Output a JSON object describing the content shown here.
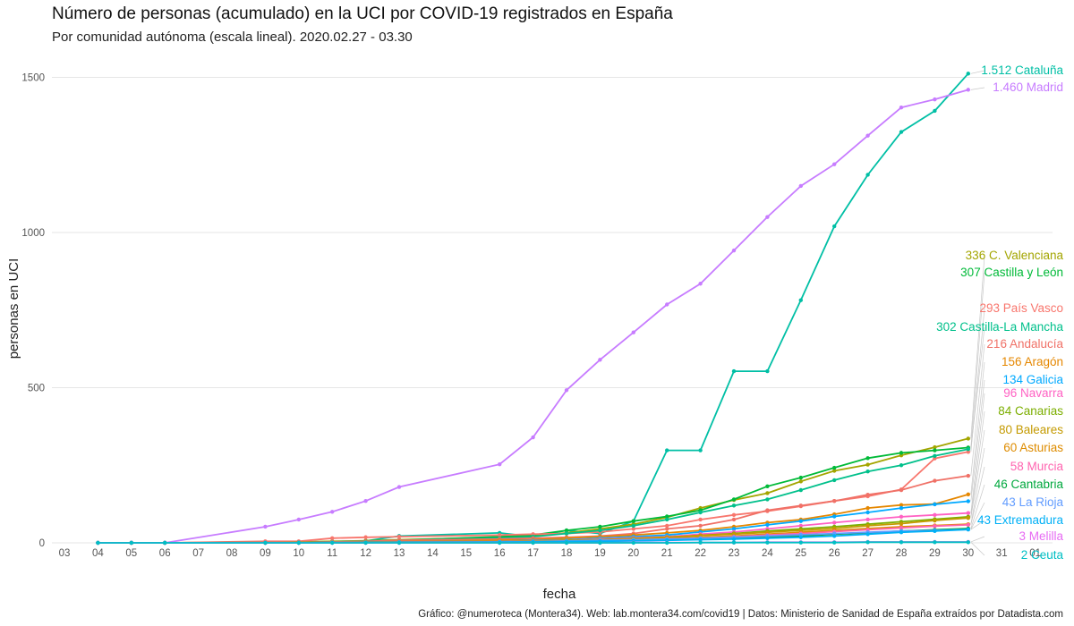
{
  "chart_data": {
    "type": "line",
    "title": "Número de personas (acumulado) en la UCI por COVID-19 registrados en España",
    "subtitle": "Por comunidad autónoma (escala lineal). 2020.02.27 - 03.30",
    "xlabel": "fecha",
    "ylabel": "personas en UCI",
    "caption": "Gráfico: @numeroteca (Montera34). Web: lab.montera34.com/covid19 | Datos: Ministerio de Sanidad de España extraídos por Datadista.com",
    "x_ticks": [
      "03",
      "04",
      "05",
      "06",
      "07",
      "08",
      "09",
      "10",
      "11",
      "12",
      "13",
      "14",
      "15",
      "16",
      "17",
      "18",
      "19",
      "20",
      "21",
      "22",
      "23",
      "24",
      "25",
      "26",
      "27",
      "28",
      "29",
      "30",
      "31",
      "01"
    ],
    "y_ticks": [
      0,
      500,
      1000,
      1500
    ],
    "ylim": [
      -40,
      1600
    ],
    "grid": true,
    "series": [
      {
        "name": "Cataluña",
        "label": "1.512 Cataluña",
        "color": "#00BFA5",
        "x": [
          4,
          5,
          6,
          9,
          10,
          11,
          12,
          13,
          16,
          17,
          18,
          19,
          20,
          21,
          22,
          23,
          24,
          25,
          26,
          27,
          28,
          29,
          30
        ],
        "values": [
          0,
          0,
          0,
          2,
          3,
          4,
          6,
          22,
          32,
          20,
          40,
          30,
          70,
          298,
          298,
          553,
          553,
          782,
          1020,
          1186,
          1324,
          1392,
          1512
        ]
      },
      {
        "name": "Madrid",
        "label": "1.460 Madrid",
        "color": "#C77CFF",
        "x": [
          4,
          5,
          6,
          9,
          10,
          11,
          12,
          13,
          16,
          17,
          18,
          19,
          20,
          21,
          22,
          23,
          24,
          25,
          26,
          27,
          28,
          29,
          30
        ],
        "values": [
          0,
          0,
          0,
          52,
          75,
          100,
          135,
          180,
          253,
          340,
          492,
          590,
          678,
          768,
          835,
          942,
          1050,
          1150,
          1220,
          1312,
          1403,
          1429,
          1460
        ]
      },
      {
        "name": "C. Valenciana",
        "label": "336 C. Valenciana",
        "color": "#A3A500",
        "x": [
          4,
          5,
          6,
          9,
          10,
          11,
          12,
          13,
          16,
          17,
          18,
          19,
          20,
          21,
          22,
          23,
          24,
          25,
          26,
          27,
          28,
          29,
          30
        ],
        "values": [
          0,
          0,
          0,
          2,
          3,
          5,
          7,
          10,
          18,
          22,
          32,
          45,
          60,
          82,
          112,
          138,
          160,
          198,
          232,
          252,
          282,
          308,
          336
        ]
      },
      {
        "name": "Castilla y León",
        "label": "307 Castilla y León",
        "color": "#00BA38",
        "x": [
          4,
          5,
          6,
          9,
          10,
          11,
          12,
          13,
          16,
          17,
          18,
          19,
          20,
          21,
          22,
          23,
          24,
          25,
          26,
          27,
          28,
          29,
          30
        ],
        "values": [
          0,
          0,
          0,
          1,
          2,
          3,
          6,
          8,
          20,
          25,
          40,
          52,
          70,
          85,
          105,
          140,
          182,
          210,
          242,
          273,
          290,
          298,
          307
        ]
      },
      {
        "name": "País Vasco",
        "label": "293 País Vasco",
        "color": "#F8766D",
        "x": [
          4,
          5,
          6,
          9,
          10,
          11,
          12,
          13,
          16,
          17,
          18,
          19,
          20,
          21,
          22,
          23,
          24,
          25,
          26,
          27,
          28,
          29,
          30
        ],
        "values": [
          0,
          0,
          0,
          5,
          5,
          15,
          18,
          20,
          25,
          28,
          30,
          35,
          45,
          55,
          75,
          90,
          102,
          118,
          135,
          150,
          172,
          272,
          293
        ]
      },
      {
        "name": "Castilla-La Mancha",
        "label": "302 Castilla-La Mancha",
        "color": "#00C08B",
        "x": [
          4,
          5,
          6,
          9,
          10,
          11,
          12,
          13,
          16,
          17,
          18,
          19,
          20,
          21,
          22,
          23,
          24,
          25,
          26,
          27,
          28,
          29,
          30
        ],
        "values": [
          0,
          0,
          0,
          1,
          2,
          3,
          5,
          8,
          15,
          20,
          30,
          40,
          55,
          75,
          98,
          120,
          140,
          170,
          202,
          230,
          250,
          280,
          302
        ]
      },
      {
        "name": "Andalucía",
        "label": "216 Andalucía",
        "color": "#F07167",
        "x": [
          4,
          5,
          6,
          9,
          10,
          11,
          12,
          13,
          16,
          17,
          18,
          19,
          20,
          21,
          22,
          23,
          24,
          25,
          26,
          27,
          28,
          29,
          30
        ],
        "values": [
          0,
          0,
          0,
          1,
          2,
          3,
          5,
          8,
          12,
          15,
          18,
          22,
          30,
          45,
          55,
          75,
          105,
          120,
          135,
          155,
          170,
          200,
          216
        ]
      },
      {
        "name": "Aragón",
        "label": "156 Aragón",
        "color": "#E58700",
        "x": [
          4,
          5,
          6,
          9,
          10,
          11,
          12,
          13,
          16,
          17,
          18,
          19,
          20,
          21,
          22,
          23,
          24,
          25,
          26,
          27,
          28,
          29,
          30
        ],
        "values": [
          0,
          0,
          0,
          0,
          1,
          2,
          3,
          4,
          8,
          10,
          15,
          20,
          25,
          32,
          40,
          52,
          65,
          75,
          92,
          112,
          122,
          125,
          156
        ]
      },
      {
        "name": "Galicia",
        "label": "134 Galicia",
        "color": "#00A9FF",
        "x": [
          4,
          5,
          6,
          9,
          10,
          11,
          12,
          13,
          16,
          17,
          18,
          19,
          20,
          21,
          22,
          23,
          24,
          25,
          26,
          27,
          28,
          29,
          30
        ],
        "values": [
          0,
          0,
          0,
          0,
          1,
          1,
          2,
          3,
          5,
          8,
          10,
          15,
          20,
          25,
          35,
          45,
          58,
          70,
          85,
          98,
          112,
          124,
          134
        ]
      },
      {
        "name": "Navarra",
        "label": "96 Navarra",
        "color": "#FF61C3",
        "x": [
          4,
          5,
          6,
          9,
          10,
          11,
          12,
          13,
          16,
          17,
          18,
          19,
          20,
          21,
          22,
          23,
          24,
          25,
          26,
          27,
          28,
          29,
          30
        ],
        "values": [
          0,
          0,
          0,
          0,
          1,
          1,
          2,
          3,
          5,
          7,
          9,
          12,
          16,
          20,
          28,
          35,
          45,
          55,
          65,
          75,
          84,
          90,
          96
        ]
      },
      {
        "name": "Canarias",
        "label": "84 Canarias",
        "color": "#7CAE00",
        "x": [
          4,
          5,
          6,
          9,
          10,
          11,
          12,
          13,
          16,
          17,
          18,
          19,
          20,
          21,
          22,
          23,
          24,
          25,
          26,
          27,
          28,
          29,
          30
        ],
        "values": [
          0,
          0,
          0,
          0,
          1,
          1,
          2,
          3,
          4,
          6,
          8,
          10,
          14,
          18,
          24,
          30,
          38,
          45,
          52,
          60,
          68,
          76,
          84
        ]
      },
      {
        "name": "Baleares",
        "label": "80 Baleares",
        "color": "#C49A00",
        "x": [
          4,
          5,
          6,
          9,
          10,
          11,
          12,
          13,
          16,
          17,
          18,
          19,
          20,
          21,
          22,
          23,
          24,
          25,
          26,
          27,
          28,
          29,
          30
        ],
        "values": [
          0,
          0,
          0,
          0,
          1,
          1,
          2,
          3,
          4,
          6,
          8,
          10,
          14,
          18,
          24,
          28,
          34,
          40,
          46,
          55,
          62,
          72,
          80
        ]
      },
      {
        "name": "Asturias",
        "label": "60 Asturias",
        "color": "#DE8C00",
        "x": [
          4,
          5,
          6,
          9,
          10,
          11,
          12,
          13,
          16,
          17,
          18,
          19,
          20,
          21,
          22,
          23,
          24,
          25,
          26,
          27,
          28,
          29,
          30
        ],
        "values": [
          0,
          0,
          0,
          0,
          0,
          1,
          1,
          2,
          3,
          4,
          6,
          8,
          10,
          14,
          18,
          22,
          28,
          34,
          40,
          46,
          52,
          56,
          60
        ]
      },
      {
        "name": "Murcia",
        "label": "58 Murcia",
        "color": "#FF64B0",
        "x": [
          4,
          5,
          6,
          9,
          10,
          11,
          12,
          13,
          16,
          17,
          18,
          19,
          20,
          21,
          22,
          23,
          24,
          25,
          26,
          27,
          28,
          29,
          30
        ],
        "values": [
          0,
          0,
          0,
          0,
          0,
          1,
          1,
          2,
          3,
          4,
          5,
          7,
          9,
          12,
          15,
          20,
          25,
          30,
          36,
          42,
          48,
          54,
          58
        ]
      },
      {
        "name": "Cantabria",
        "label": "46 Cantabria",
        "color": "#00A83E",
        "x": [
          4,
          5,
          6,
          9,
          10,
          11,
          12,
          13,
          16,
          17,
          18,
          19,
          20,
          21,
          22,
          23,
          24,
          25,
          26,
          27,
          28,
          29,
          30
        ],
        "values": [
          0,
          0,
          0,
          0,
          0,
          1,
          1,
          2,
          2,
          3,
          4,
          5,
          7,
          9,
          12,
          15,
          18,
          22,
          28,
          32,
          38,
          42,
          46
        ]
      },
      {
        "name": "La Rioja",
        "label": "43 La Rioja",
        "color": "#619CFF",
        "x": [
          4,
          5,
          6,
          9,
          10,
          11,
          12,
          13,
          16,
          17,
          18,
          19,
          20,
          21,
          22,
          23,
          24,
          25,
          26,
          27,
          28,
          29,
          30
        ],
        "values": [
          0,
          0,
          0,
          0,
          0,
          1,
          1,
          2,
          3,
          4,
          6,
          8,
          10,
          12,
          15,
          18,
          22,
          26,
          30,
          34,
          38,
          40,
          43
        ]
      },
      {
        "name": "Extremadura",
        "label": "43 Extremadura",
        "color": "#00B0F6",
        "x": [
          4,
          5,
          6,
          9,
          10,
          11,
          12,
          13,
          16,
          17,
          18,
          19,
          20,
          21,
          22,
          23,
          24,
          25,
          26,
          27,
          28,
          29,
          30
        ],
        "values": [
          0,
          0,
          0,
          0,
          0,
          0,
          1,
          1,
          2,
          3,
          4,
          5,
          6,
          8,
          10,
          12,
          15,
          18,
          22,
          28,
          34,
          38,
          43
        ]
      },
      {
        "name": "Melilla",
        "label": "3 Melilla",
        "color": "#E76BF3",
        "x": [
          4,
          5,
          6,
          9,
          10,
          11,
          12,
          13,
          16,
          17,
          18,
          19,
          20,
          21,
          22,
          23,
          24,
          25,
          26,
          27,
          28,
          29,
          30
        ],
        "values": [
          0,
          0,
          0,
          0,
          0,
          0,
          0,
          0,
          0,
          0,
          0,
          0,
          1,
          1,
          1,
          1,
          2,
          2,
          2,
          3,
          3,
          3,
          3
        ]
      },
      {
        "name": "Ceuta",
        "label": "2 Ceuta",
        "color": "#00BFC4",
        "x": [
          4,
          5,
          6,
          9,
          10,
          11,
          12,
          13,
          16,
          17,
          18,
          19,
          20,
          21,
          22,
          23,
          24,
          25,
          26,
          27,
          28,
          29,
          30
        ],
        "values": [
          0,
          0,
          0,
          0,
          0,
          0,
          0,
          0,
          0,
          0,
          0,
          0,
          0,
          0,
          1,
          1,
          1,
          1,
          1,
          2,
          2,
          2,
          2
        ]
      }
    ]
  }
}
